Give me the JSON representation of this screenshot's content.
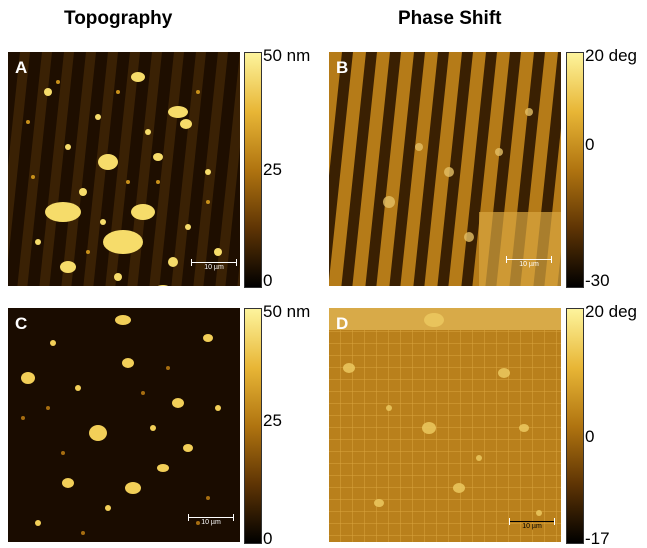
{
  "titles": {
    "topography": "Topography",
    "phase_shift": "Phase Shift"
  },
  "panels": {
    "A": {
      "letter": "A",
      "scalebar": "10 µm"
    },
    "B": {
      "letter": "B",
      "scalebar": "10 µm"
    },
    "C": {
      "letter": "C",
      "scalebar": "10 µm"
    },
    "D": {
      "letter": "D",
      "scalebar": "10 µm"
    }
  },
  "colorbars": {
    "top_left": {
      "max": "50 nm",
      "mid": "25",
      "min": "0"
    },
    "top_right": {
      "max": "20 deg",
      "mid": "0",
      "min": "-30"
    },
    "bottom_left": {
      "max": "50 nm",
      "mid": "25",
      "min": "0"
    },
    "bottom_right": {
      "max": "20 deg",
      "mid": "0",
      "min": "-17"
    }
  },
  "colors": {
    "afm_dark": "#1a0c00",
    "afm_mid": "#8a5a08",
    "afm_gold": "#c8901a",
    "afm_bright": "#f5e08a"
  }
}
